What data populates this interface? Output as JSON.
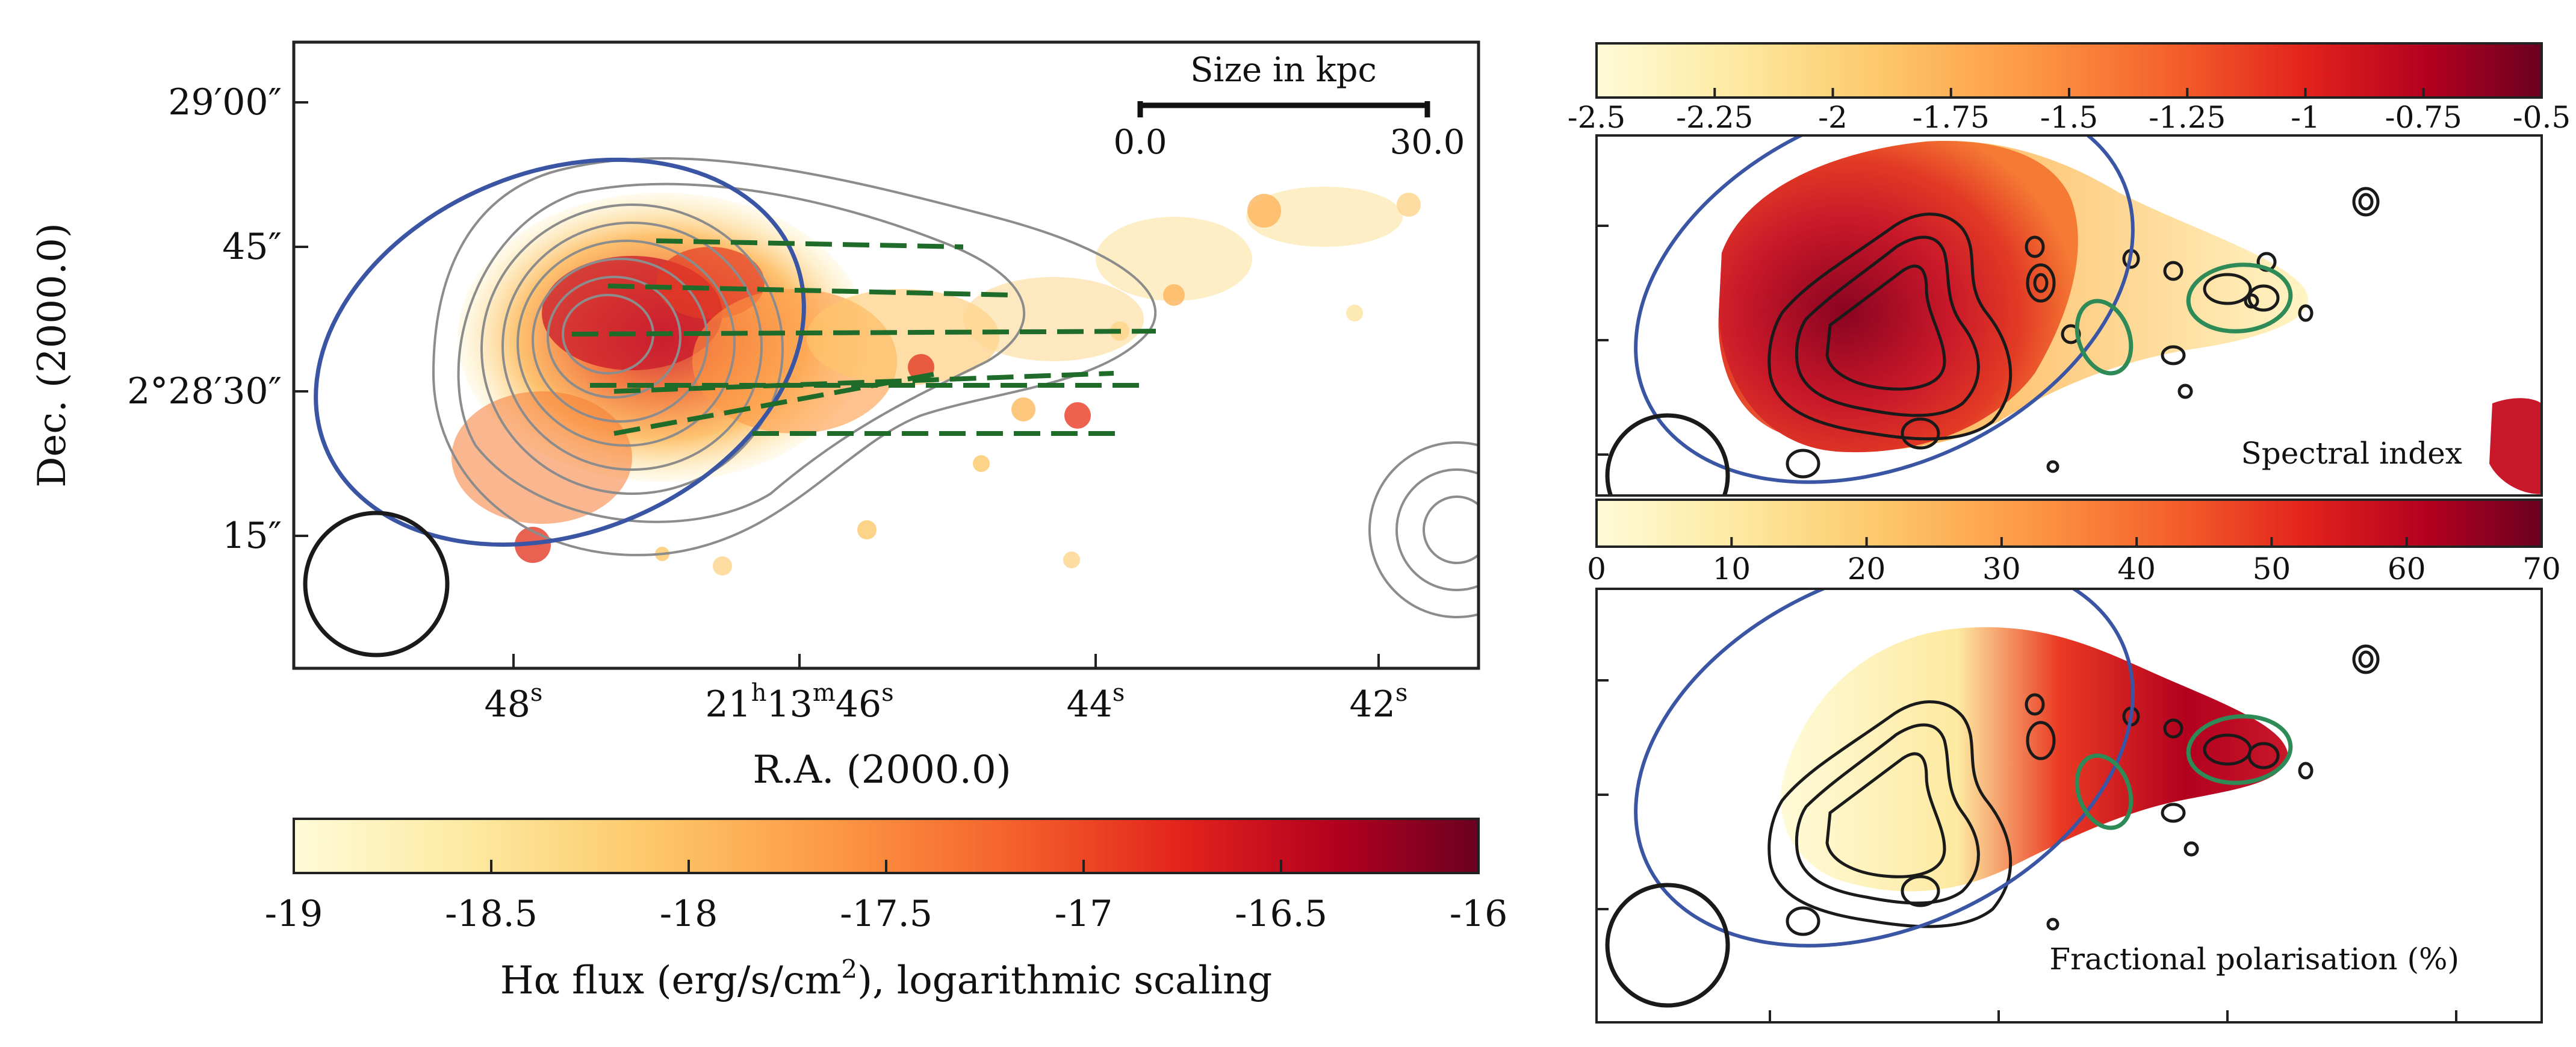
{
  "colors": {
    "frame": "#222222",
    "ellipse_blue": "#3a55a3",
    "ellipse_green": "#2e8b57",
    "vectors_green": "#1e6b2a",
    "contours_grey": "#8c8c8c",
    "contours_black": "#1a1a1a",
    "ylorrd": [
      "#fffbd8",
      "#fde9a0",
      "#fdc86a",
      "#fd9a45",
      "#f5642c",
      "#e2231c",
      "#b3001f",
      "#6b0020"
    ]
  },
  "chart_data": [
    {
      "id": "halpha",
      "type": "heatmap",
      "xlabel": "R.A. (2000.0)",
      "ylabel": "Dec. (2000.0)",
      "xticks": [
        {
          "label": "48",
          "sup": "s"
        },
        {
          "label": "21",
          "sup": "h",
          "label2": "13",
          "sup2": "m",
          "label3": "46",
          "sup3": "s"
        },
        {
          "label": "44",
          "sup": "s"
        },
        {
          "label": "42",
          "sup": "s"
        }
      ],
      "yticks": [
        "29′00″",
        "45″",
        "2°28′30″",
        "15″"
      ],
      "scalebar": {
        "title": "Size in kpc",
        "min_label": "0.0",
        "max_label": "30.0"
      },
      "colorbar": {
        "label_main": "Hα flux (erg/s/cm",
        "label_sup": "2",
        "label_end": "), logarithmic scaling",
        "range": [
          -19,
          -16
        ],
        "ticks": [
          "-19",
          "-18.5",
          "-18",
          "-17.5",
          "-17",
          "-16.5",
          "-16"
        ]
      },
      "overlays": [
        "grey radio contours",
        "blue ellipse",
        "green polarisation vectors",
        "beam circle"
      ]
    },
    {
      "id": "spectral",
      "type": "heatmap",
      "panel_label": "Spectral index",
      "colorbar": {
        "range": [
          -2.5,
          -0.5
        ],
        "ticks": [
          "-2.5",
          "-2.25",
          "-2",
          "-1.75",
          "-1.5",
          "-1.25",
          "-1",
          "-0.75",
          "-0.5"
        ]
      }
    },
    {
      "id": "polarisation",
      "type": "heatmap",
      "panel_label": "Fractional polarisation (%)",
      "colorbar": {
        "range": [
          0,
          70
        ],
        "ticks": [
          "0",
          "10",
          "20",
          "30",
          "40",
          "50",
          "60",
          "70"
        ]
      }
    }
  ]
}
